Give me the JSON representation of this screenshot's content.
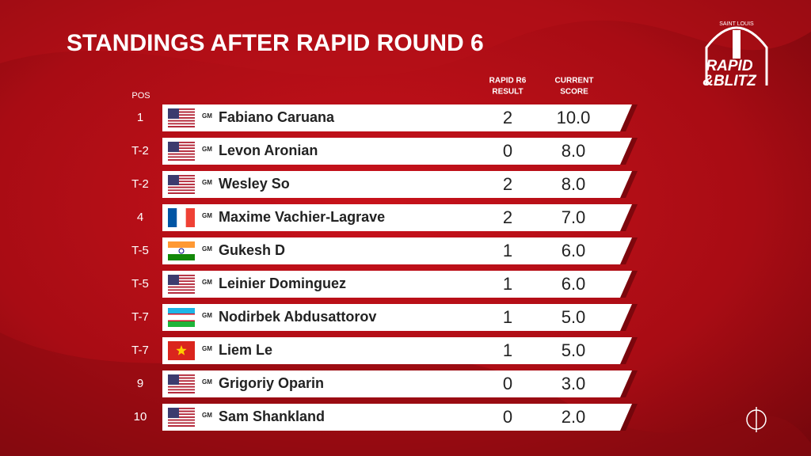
{
  "header": {
    "title": "STANDINGS AFTER RAPID ROUND 6"
  },
  "logo": {
    "top": "SAINT LOUIS",
    "line1": "RAPID",
    "line2": "&BLITZ"
  },
  "table": {
    "columns": {
      "pos": "POS",
      "result": [
        "RAPID R6",
        "RESULT"
      ],
      "score": [
        "CURRENT",
        "SCORE"
      ]
    },
    "rows": [
      {
        "pos": "1",
        "title": "GM",
        "name": "Fabiano Caruana",
        "result": "2",
        "score": "10.0"
      },
      {
        "pos": "T-2",
        "title": "GM",
        "name": "Levon Aronian",
        "result": "0",
        "score": "8.0"
      },
      {
        "pos": "T-2",
        "title": "GM",
        "name": "Wesley So",
        "result": "2",
        "score": "8.0"
      },
      {
        "pos": "4",
        "title": "GM",
        "name": "Maxime Vachier-Lagrave",
        "result": "2",
        "score": "7.0"
      },
      {
        "pos": "T-5",
        "title": "GM",
        "name": "Gukesh D",
        "result": "1",
        "score": "6.0"
      },
      {
        "pos": "T-5",
        "title": "GM",
        "name": "Leinier Dominguez",
        "result": "1",
        "score": "6.0"
      },
      {
        "pos": "T-7",
        "title": "GM",
        "name": "Nodirbek Abdusattorov",
        "result": "1",
        "score": "5.0"
      },
      {
        "pos": "T-7",
        "title": "GM",
        "name": "Liem Le",
        "result": "1",
        "score": "5.0"
      },
      {
        "pos": "9",
        "title": "GM",
        "name": "Grigoriy Oparin",
        "result": "0",
        "score": "3.0"
      },
      {
        "pos": "10",
        "title": "GM",
        "name": "Sam Shankland",
        "result": "0",
        "score": "2.0"
      }
    ]
  }
}
